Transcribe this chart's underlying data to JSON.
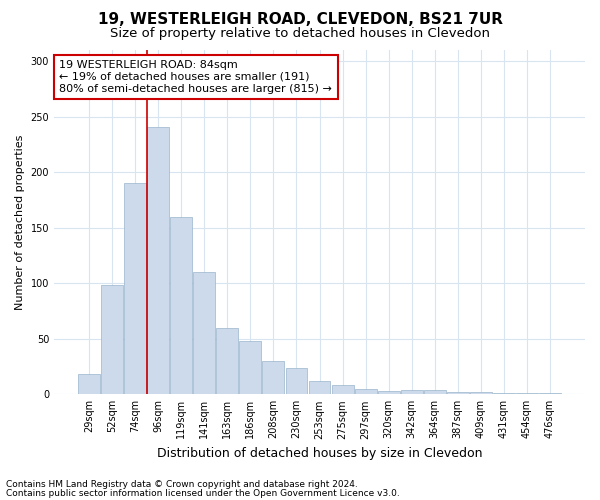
{
  "title": "19, WESTERLEIGH ROAD, CLEVEDON, BS21 7UR",
  "subtitle": "Size of property relative to detached houses in Clevedon",
  "xlabel": "Distribution of detached houses by size in Clevedon",
  "ylabel": "Number of detached properties",
  "categories": [
    "29sqm",
    "52sqm",
    "74sqm",
    "96sqm",
    "119sqm",
    "141sqm",
    "163sqm",
    "186sqm",
    "208sqm",
    "230sqm",
    "253sqm",
    "275sqm",
    "297sqm",
    "320sqm",
    "342sqm",
    "364sqm",
    "387sqm",
    "409sqm",
    "431sqm",
    "454sqm",
    "476sqm"
  ],
  "values": [
    18,
    98,
    190,
    241,
    160,
    110,
    60,
    48,
    30,
    24,
    12,
    8,
    5,
    3,
    4,
    4,
    2,
    2,
    1,
    1,
    1
  ],
  "bar_color": "#ccdaeb",
  "bar_edge_color": "#9ab4cc",
  "property_line_color": "#cc0000",
  "annotation_text": "19 WESTERLEIGH ROAD: 84sqm\n← 19% of detached houses are smaller (191)\n80% of semi-detached houses are larger (815) →",
  "annotation_box_facecolor": "#ffffff",
  "annotation_box_edgecolor": "#cc0000",
  "ylim": [
    0,
    310
  ],
  "yticks": [
    0,
    50,
    100,
    150,
    200,
    250,
    300
  ],
  "bg_color": "#ffffff",
  "plot_bg_color": "#ffffff",
  "grid_color": "#d8e4f0",
  "title_fontsize": 11,
  "subtitle_fontsize": 9.5,
  "ylabel_fontsize": 8,
  "xlabel_fontsize": 9,
  "tick_fontsize": 7,
  "annotation_fontsize": 8,
  "footer_fontsize": 6.5,
  "footer_line1": "Contains HM Land Registry data © Crown copyright and database right 2024.",
  "footer_line2": "Contains public sector information licensed under the Open Government Licence v3.0."
}
